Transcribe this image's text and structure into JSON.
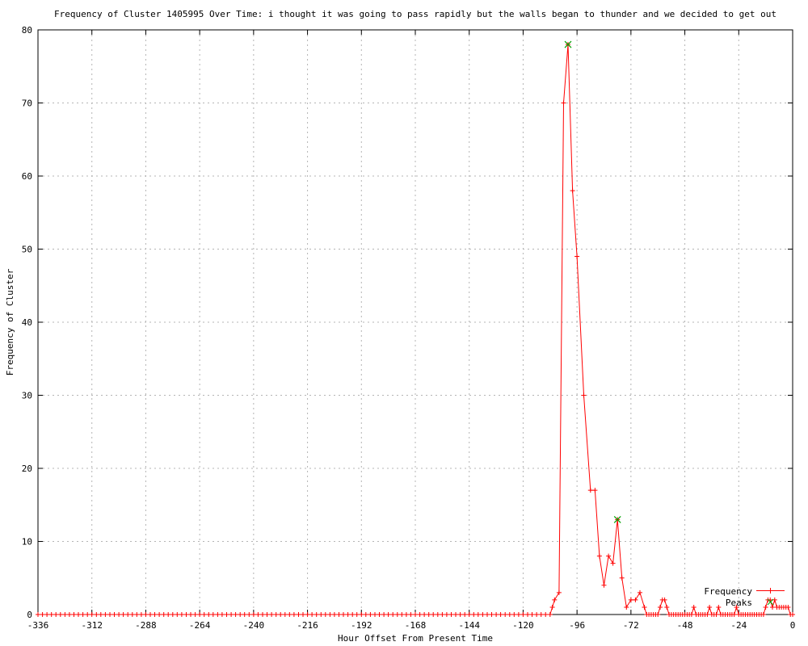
{
  "title": "Frequency of Cluster 1405995 Over Time: i thought it was going to pass rapidly but the walls began to thunder and we decided to get out",
  "chart_data": {
    "type": "line",
    "title": "Frequency of Cluster 1405995 Over Time: i thought it was going to pass rapidly but the walls began to thunder and we decided to get out",
    "xlabel": "Hour Offset From Present Time",
    "ylabel": "Frequency of Cluster",
    "xlim": [
      -336,
      0
    ],
    "ylim": [
      0,
      80
    ],
    "xticks": [
      -336,
      -312,
      -288,
      -264,
      -240,
      -216,
      -192,
      -168,
      -144,
      -120,
      -96,
      -72,
      -48,
      -24,
      0
    ],
    "yticks": [
      0,
      10,
      20,
      30,
      40,
      50,
      60,
      70,
      80
    ],
    "grid": true,
    "legend_position": "bottom-right",
    "colors": {
      "frequency": "#ff0000",
      "peaks": "#00a000",
      "grid": "#b4b4b4",
      "axis": "#000000",
      "background": "#ffffff"
    },
    "series": [
      {
        "name": "Frequency",
        "style": "linespoints",
        "marker": "plus",
        "color": "#ff0000",
        "zero_fill": {
          "from": -336,
          "to": -110,
          "step": 2,
          "value": 0
        },
        "points": [
          [
            -108,
            0
          ],
          [
            -107,
            1
          ],
          [
            -106,
            2
          ],
          [
            -104,
            3
          ],
          [
            -102,
            70
          ],
          [
            -100,
            78
          ],
          [
            -98,
            58
          ],
          [
            -96,
            49
          ],
          [
            -93,
            30
          ],
          [
            -90,
            17
          ],
          [
            -88,
            17
          ],
          [
            -86,
            8
          ],
          [
            -84,
            4
          ],
          [
            -82,
            8
          ],
          [
            -80,
            7
          ],
          [
            -78,
            13
          ],
          [
            -76,
            5
          ],
          [
            -74,
            1
          ],
          [
            -72,
            2
          ],
          [
            -70,
            2
          ],
          [
            -68,
            3
          ],
          [
            -66,
            1
          ],
          [
            -65,
            0
          ],
          [
            -64,
            0
          ],
          [
            -63,
            0
          ],
          [
            -62,
            0
          ],
          [
            -61,
            0
          ],
          [
            -60,
            0
          ],
          [
            -59,
            1
          ],
          [
            -58,
            2
          ],
          [
            -57,
            2
          ],
          [
            -56,
            1
          ],
          [
            -55,
            0
          ],
          [
            -54,
            0
          ],
          [
            -53,
            0
          ],
          [
            -52,
            0
          ],
          [
            -51,
            0
          ],
          [
            -50,
            0
          ],
          [
            -49,
            0
          ],
          [
            -48,
            0
          ],
          [
            -47,
            0
          ],
          [
            -46,
            0
          ],
          [
            -45,
            0
          ],
          [
            -44,
            1
          ],
          [
            -43,
            0
          ],
          [
            -42,
            0
          ],
          [
            -41,
            0
          ],
          [
            -40,
            0
          ],
          [
            -39,
            0
          ],
          [
            -38,
            0
          ],
          [
            -37,
            1
          ],
          [
            -36,
            0
          ],
          [
            -35,
            0
          ],
          [
            -34,
            0
          ],
          [
            -33,
            1
          ],
          [
            -32,
            0
          ],
          [
            -31,
            0
          ],
          [
            -30,
            0
          ],
          [
            -29,
            0
          ],
          [
            -28,
            0
          ],
          [
            -27,
            0
          ],
          [
            -26,
            0
          ],
          [
            -25,
            1
          ],
          [
            -24,
            0
          ],
          [
            -23,
            0
          ],
          [
            -22,
            0
          ],
          [
            -21,
            0
          ],
          [
            -20,
            0
          ],
          [
            -19,
            0
          ],
          [
            -18,
            0
          ],
          [
            -17,
            0
          ],
          [
            -16,
            0
          ],
          [
            -15,
            0
          ],
          [
            -14,
            0
          ],
          [
            -13,
            0
          ],
          [
            -12,
            1
          ],
          [
            -11,
            2
          ],
          [
            -10,
            2
          ],
          [
            -9,
            1
          ],
          [
            -8,
            2
          ],
          [
            -7,
            1
          ],
          [
            -6,
            1
          ],
          [
            -5,
            1
          ],
          [
            -4,
            1
          ],
          [
            -3,
            1
          ],
          [
            -2,
            1
          ],
          [
            -1,
            0
          ],
          [
            0,
            0
          ]
        ]
      },
      {
        "name": "Peaks",
        "style": "points",
        "marker": "cross",
        "color": "#00a000",
        "points": [
          [
            -100,
            78
          ],
          [
            -78,
            13
          ]
        ]
      }
    ]
  }
}
